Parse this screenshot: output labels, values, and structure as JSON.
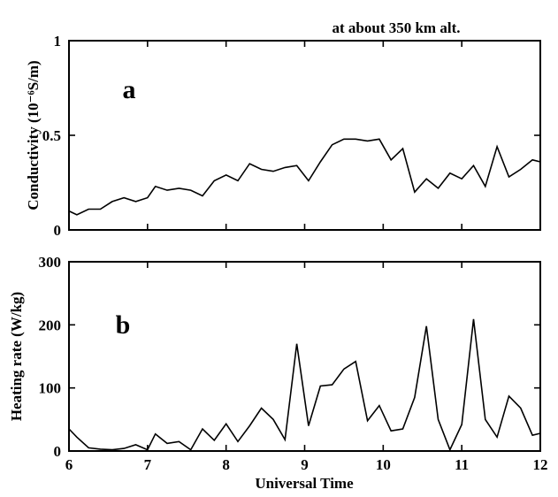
{
  "title": "at  about  350  km  alt.",
  "colors": {
    "line": "#000000",
    "axes": "#000000",
    "background": "#ffffff"
  },
  "chart_data": [
    {
      "type": "line",
      "panel": "a",
      "xlabel": "",
      "ylabel": "Conductivity  (10⁻⁶S/m)",
      "xlim": [
        6,
        12
      ],
      "ylim": [
        0,
        1
      ],
      "xticks": [
        6,
        7,
        8,
        9,
        10,
        11,
        12
      ],
      "xtick_labels": [
        "",
        "",
        "",
        "",
        "",
        "",
        ""
      ],
      "yticks": [
        0,
        0.5,
        1
      ],
      "ytick_labels": [
        "0",
        "0.5",
        "1"
      ],
      "grid": false,
      "series": [
        {
          "x": [
            6.0,
            6.1,
            6.25,
            6.4,
            6.55,
            6.7,
            6.85,
            7.0,
            7.1,
            7.25,
            7.4,
            7.55,
            7.7,
            7.85,
            8.0,
            8.15,
            8.3,
            8.45,
            8.6,
            8.75,
            8.9,
            9.05,
            9.2,
            9.35,
            9.5,
            9.65,
            9.8,
            9.95,
            10.1,
            10.25,
            10.4,
            10.55,
            10.7,
            10.85,
            11.0,
            11.15,
            11.3,
            11.45,
            11.6,
            11.75,
            11.9,
            12.0
          ],
          "y": [
            0.1,
            0.08,
            0.11,
            0.11,
            0.15,
            0.17,
            0.15,
            0.17,
            0.23,
            0.21,
            0.22,
            0.21,
            0.18,
            0.26,
            0.29,
            0.26,
            0.35,
            0.32,
            0.31,
            0.33,
            0.34,
            0.26,
            0.36,
            0.45,
            0.48,
            0.48,
            0.47,
            0.48,
            0.37,
            0.43,
            0.2,
            0.27,
            0.22,
            0.3,
            0.27,
            0.34,
            0.23,
            0.44,
            0.28,
            0.32,
            0.37,
            0.36
          ]
        }
      ]
    },
    {
      "type": "line",
      "panel": "b",
      "xlabel": "Universal  Time",
      "ylabel": "Heating  rate  (W/kg)",
      "xlim": [
        6,
        12
      ],
      "ylim": [
        0,
        300
      ],
      "xticks": [
        6,
        7,
        8,
        9,
        10,
        11,
        12
      ],
      "xtick_labels": [
        "6",
        "7",
        "8",
        "9",
        "10",
        "11",
        "12"
      ],
      "yticks": [
        0,
        100,
        200,
        300
      ],
      "ytick_labels": [
        "0",
        "100",
        "200",
        "300"
      ],
      "grid": false,
      "series": [
        {
          "x": [
            6.0,
            6.1,
            6.25,
            6.4,
            6.55,
            6.7,
            6.85,
            7.0,
            7.1,
            7.25,
            7.4,
            7.55,
            7.7,
            7.85,
            8.0,
            8.15,
            8.3,
            8.45,
            8.6,
            8.75,
            8.9,
            9.05,
            9.2,
            9.35,
            9.5,
            9.65,
            9.8,
            9.95,
            10.1,
            10.25,
            10.4,
            10.55,
            10.7,
            10.85,
            11.0,
            11.15,
            11.3,
            11.45,
            11.6,
            11.75,
            11.9,
            12.0
          ],
          "y": [
            35,
            22,
            5,
            3,
            2,
            4,
            10,
            2,
            27,
            12,
            15,
            2,
            35,
            17,
            43,
            15,
            40,
            68,
            50,
            18,
            170,
            40,
            103,
            105,
            130,
            142,
            48,
            72,
            32,
            35,
            85,
            198,
            50,
            2,
            42,
            209,
            50,
            22,
            87,
            68,
            25,
            28
          ]
        }
      ]
    }
  ],
  "panels": {
    "a": {
      "letter": "a",
      "ylabel": "Conductivity  (10⁻⁶S/m)"
    },
    "b": {
      "letter": "b",
      "ylabel": "Heating  rate  (W/kg)",
      "xlabel": "Universal  Time"
    }
  }
}
